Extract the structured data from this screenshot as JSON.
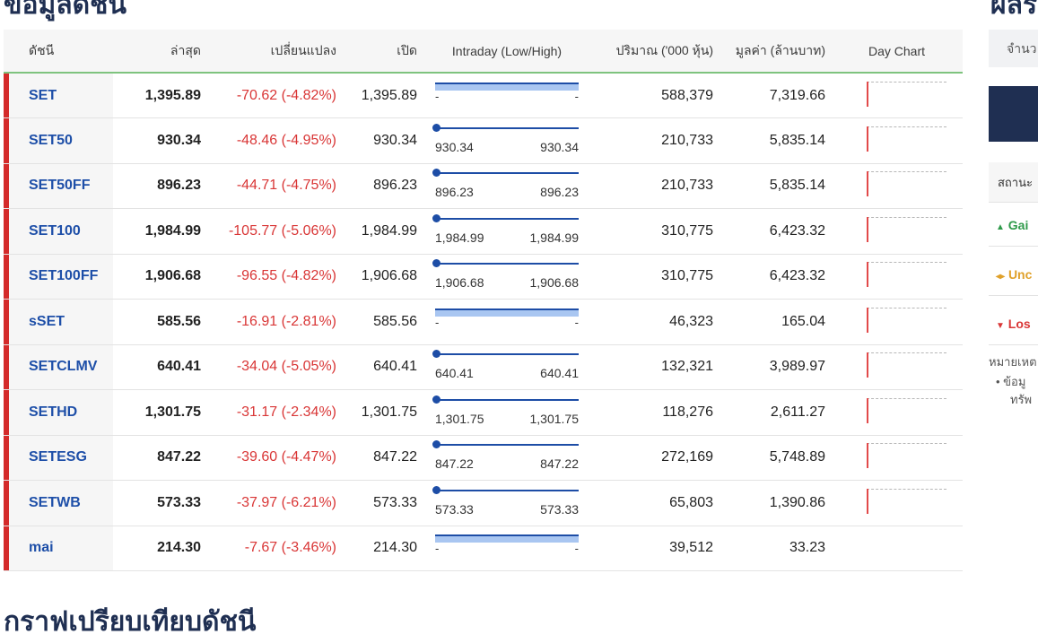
{
  "page": {
    "title_top": "ข้อมูลดัชนี",
    "title_bottom": "กราฟเปรียบเทียบดัชนี",
    "title_right": "ผลร"
  },
  "table": {
    "headers": {
      "index": "ดัชนี",
      "last": "ล่าสุด",
      "change": "เปลี่ยนแปลง",
      "open": "เปิด",
      "intraday": "Intraday (Low/High)",
      "volume": "ปริมาณ ('000 หุ้น)",
      "value": "มูลค่า (ล้านบาท)",
      "daychart": "Day Chart"
    },
    "rows": [
      {
        "name": "SET",
        "last": "1,395.89",
        "change": "-70.62 (-4.82%)",
        "open": "1,395.89",
        "low": "-",
        "high": "-",
        "volume": "588,379",
        "value": "7,319.66",
        "has_range": false,
        "has_chart": true
      },
      {
        "name": "SET50",
        "last": "930.34",
        "change": "-48.46 (-4.95%)",
        "open": "930.34",
        "low": "930.34",
        "high": "930.34",
        "volume": "210,733",
        "value": "5,835.14",
        "has_range": true,
        "has_chart": true
      },
      {
        "name": "SET50FF",
        "last": "896.23",
        "change": "-44.71 (-4.75%)",
        "open": "896.23",
        "low": "896.23",
        "high": "896.23",
        "volume": "210,733",
        "value": "5,835.14",
        "has_range": true,
        "has_chart": true
      },
      {
        "name": "SET100",
        "last": "1,984.99",
        "change": "-105.77 (-5.06%)",
        "open": "1,984.99",
        "low": "1,984.99",
        "high": "1,984.99",
        "volume": "310,775",
        "value": "6,423.32",
        "has_range": true,
        "has_chart": true
      },
      {
        "name": "SET100FF",
        "last": "1,906.68",
        "change": "-96.55 (-4.82%)",
        "open": "1,906.68",
        "low": "1,906.68",
        "high": "1,906.68",
        "volume": "310,775",
        "value": "6,423.32",
        "has_range": true,
        "has_chart": true
      },
      {
        "name": "sSET",
        "last": "585.56",
        "change": "-16.91 (-2.81%)",
        "open": "585.56",
        "low": "-",
        "high": "-",
        "volume": "46,323",
        "value": "165.04",
        "has_range": false,
        "has_chart": true
      },
      {
        "name": "SETCLMV",
        "last": "640.41",
        "change": "-34.04 (-5.05%)",
        "open": "640.41",
        "low": "640.41",
        "high": "640.41",
        "volume": "132,321",
        "value": "3,989.97",
        "has_range": true,
        "has_chart": true
      },
      {
        "name": "SETHD",
        "last": "1,301.75",
        "change": "-31.17 (-2.34%)",
        "open": "1,301.75",
        "low": "1,301.75",
        "high": "1,301.75",
        "volume": "118,276",
        "value": "2,611.27",
        "has_range": true,
        "has_chart": true
      },
      {
        "name": "SETESG",
        "last": "847.22",
        "change": "-39.60 (-4.47%)",
        "open": "847.22",
        "low": "847.22",
        "high": "847.22",
        "volume": "272,169",
        "value": "5,748.89",
        "has_range": true,
        "has_chart": true
      },
      {
        "name": "SETWB",
        "last": "573.33",
        "change": "-37.97 (-6.21%)",
        "open": "573.33",
        "low": "573.33",
        "high": "573.33",
        "volume": "65,803",
        "value": "1,390.86",
        "has_range": true,
        "has_chart": true
      },
      {
        "name": "mai",
        "last": "214.30",
        "change": "-7.67 (-3.46%)",
        "open": "214.30",
        "low": "-",
        "high": "-",
        "volume": "39,512",
        "value": "33.23",
        "has_range": false,
        "has_chart": false
      }
    ]
  },
  "sidebar": {
    "amount_label": "จำนว",
    "status_label": "สถานะ",
    "gainers": "Gai",
    "unchanged": "Unc",
    "losers": "Los",
    "note_title": "หมายเหต",
    "note_line1": "ข้อมู",
    "note_line2": "ทรัพ"
  },
  "colors": {
    "navy": "#1f2f52",
    "index_blue": "#1e4fa8",
    "down_red": "#d93636",
    "accent_red": "#d42a2a",
    "gain_green": "#2e9a4a",
    "unchanged_amber": "#e0a12a"
  },
  "icons": {
    "gain": "triangle-up-icon",
    "unchanged": "arrows-left-right-icon",
    "loss": "triangle-down-icon"
  }
}
